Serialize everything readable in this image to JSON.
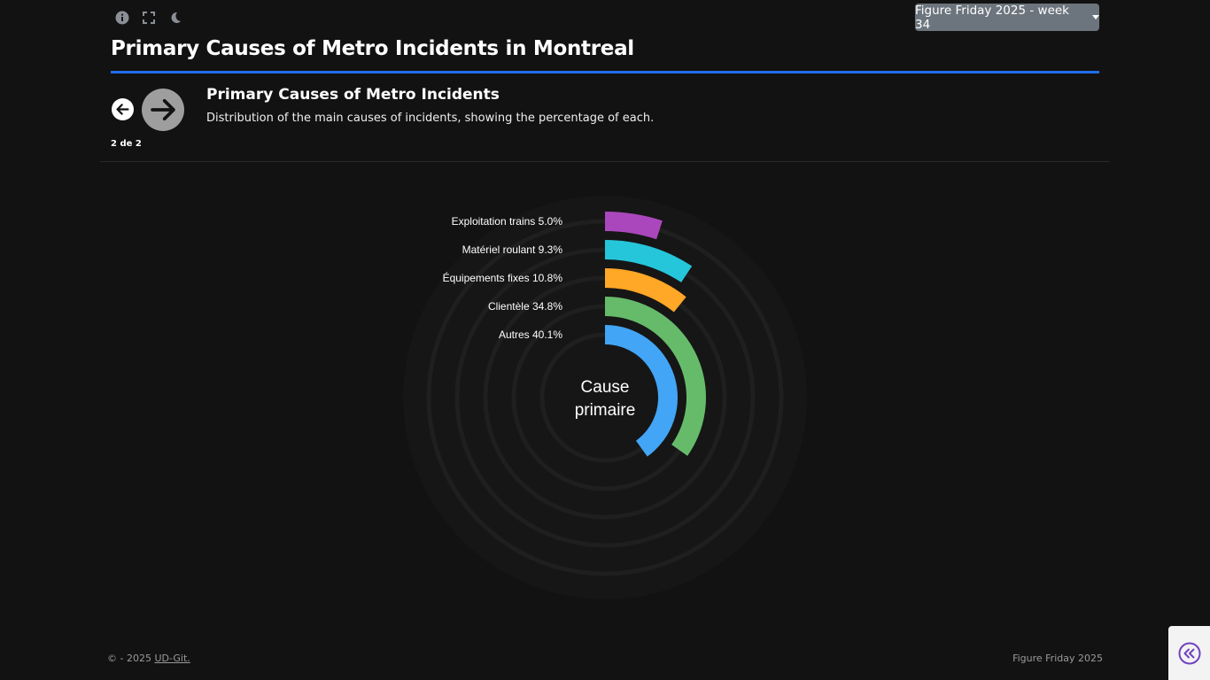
{
  "header": {
    "icons": [
      "info-icon",
      "fullscreen-icon",
      "moon-icon"
    ],
    "dropdown_label": "Figure Friday 2025 - week 34",
    "title": "Primary Causes of Metro Incidents in Montreal"
  },
  "slide": {
    "counter": "2 de 2",
    "title": "Primary Causes of Metro Incidents",
    "subtitle": "Distribution of the main causes of incidents, showing the percentage of each."
  },
  "chart_data": {
    "type": "radial-bar",
    "center_label_line1": "Cause",
    "center_label_line2": "primaire",
    "max_percent": 50,
    "series": [
      {
        "label": "Autres 40.1%",
        "value": 40.1,
        "color": "#42a5f5"
      },
      {
        "label": "Clientèle 34.8%",
        "value": 34.8,
        "color": "#66bb6a"
      },
      {
        "label": "Équipements fixes 10.8%",
        "value": 10.8,
        "color": "#ffa726"
      },
      {
        "label": "Matériel roulant 9.3%",
        "value": 9.3,
        "color": "#26c6da"
      },
      {
        "label": "Exploitation trains 5.0%",
        "value": 5.0,
        "color": "#ab47bc"
      }
    ]
  },
  "footer": {
    "copyright_prefix": "© - 2025",
    "link_text": "UD-Git.",
    "right_text": "Figure Friday 2025"
  }
}
